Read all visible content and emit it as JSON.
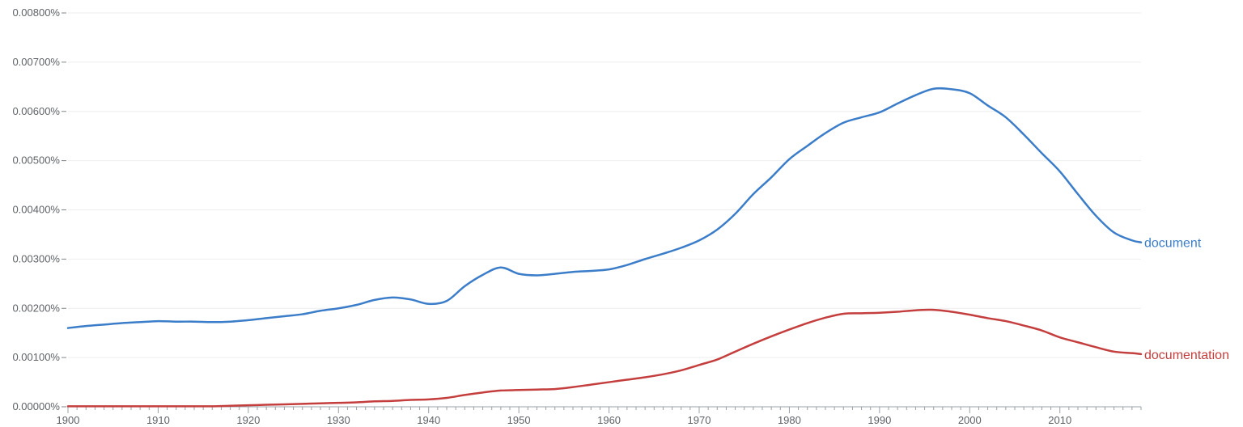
{
  "chart_data": {
    "type": "line",
    "title": "",
    "xlabel": "",
    "ylabel": "",
    "xlim": [
      1900,
      2019
    ],
    "ylim": [
      0,
      0.008
    ],
    "x_ticks": [
      1900,
      1910,
      1920,
      1930,
      1940,
      1950,
      1960,
      1970,
      1980,
      1990,
      2000,
      2010
    ],
    "x_tick_labels": [
      "1900",
      "1910",
      "1920",
      "1930",
      "1940",
      "1950",
      "1960",
      "1970",
      "1980",
      "1990",
      "2000",
      "2010"
    ],
    "y_ticks": [
      0,
      0.001,
      0.002,
      0.003,
      0.004,
      0.005,
      0.006,
      0.007,
      0.008
    ],
    "y_tick_labels": [
      "0.00000%",
      "0.00100%",
      "0.00200%",
      "0.00300%",
      "0.00400%",
      "0.00500%",
      "0.00600%",
      "0.00700%",
      "0.00800%"
    ],
    "grid": true,
    "legend": "inline-right",
    "x": [
      1900,
      1902,
      1904,
      1906,
      1908,
      1910,
      1912,
      1914,
      1916,
      1918,
      1920,
      1922,
      1924,
      1926,
      1928,
      1930,
      1932,
      1934,
      1936,
      1938,
      1940,
      1942,
      1944,
      1946,
      1948,
      1950,
      1952,
      1954,
      1956,
      1958,
      1960,
      1962,
      1964,
      1966,
      1968,
      1970,
      1972,
      1974,
      1976,
      1978,
      1980,
      1982,
      1984,
      1986,
      1988,
      1990,
      1992,
      1994,
      1996,
      1998,
      2000,
      2002,
      2004,
      2006,
      2008,
      2010,
      2012,
      2014,
      2016,
      2018,
      2019
    ],
    "series": [
      {
        "name": "document",
        "color": "#3b7dc8",
        "values": [
          0.0016,
          0.00164,
          0.00167,
          0.0017,
          0.00172,
          0.00174,
          0.00173,
          0.00173,
          0.00172,
          0.00173,
          0.00176,
          0.0018,
          0.00184,
          0.00188,
          0.00195,
          0.002,
          0.00207,
          0.00217,
          0.00222,
          0.00218,
          0.00209,
          0.00215,
          0.00245,
          0.00268,
          0.00283,
          0.0027,
          0.00267,
          0.0027,
          0.00274,
          0.00276,
          0.00279,
          0.00288,
          0.003,
          0.00311,
          0.00323,
          0.00338,
          0.0036,
          0.00392,
          0.00432,
          0.00466,
          0.00503,
          0.0053,
          0.00556,
          0.00577,
          0.00588,
          0.00598,
          0.00616,
          0.00633,
          0.00646,
          0.00645,
          0.00637,
          0.00612,
          0.00588,
          0.00553,
          0.00515,
          0.00478,
          0.00432,
          0.00388,
          0.00354,
          0.00338,
          0.00334
        ]
      },
      {
        "name": "documentation",
        "color": "#c43e3e",
        "values": [
          1e-05,
          1e-05,
          1e-05,
          1e-05,
          1e-05,
          1e-05,
          1e-05,
          1e-05,
          1e-05,
          2e-05,
          3e-05,
          4e-05,
          5e-05,
          6e-05,
          7e-05,
          8e-05,
          9e-05,
          0.00011,
          0.00012,
          0.00014,
          0.00015,
          0.00018,
          0.00024,
          0.00029,
          0.00033,
          0.00034,
          0.00035,
          0.00036,
          0.0004,
          0.00045,
          0.0005,
          0.00055,
          0.0006,
          0.00066,
          0.00074,
          0.00085,
          0.00096,
          0.00112,
          0.00128,
          0.00143,
          0.00157,
          0.0017,
          0.00181,
          0.00189,
          0.0019,
          0.00191,
          0.00193,
          0.00196,
          0.00197,
          0.00193,
          0.00187,
          0.0018,
          0.00174,
          0.00165,
          0.00155,
          0.00141,
          0.00131,
          0.00121,
          0.00112,
          0.00109,
          0.00107
        ]
      }
    ]
  }
}
